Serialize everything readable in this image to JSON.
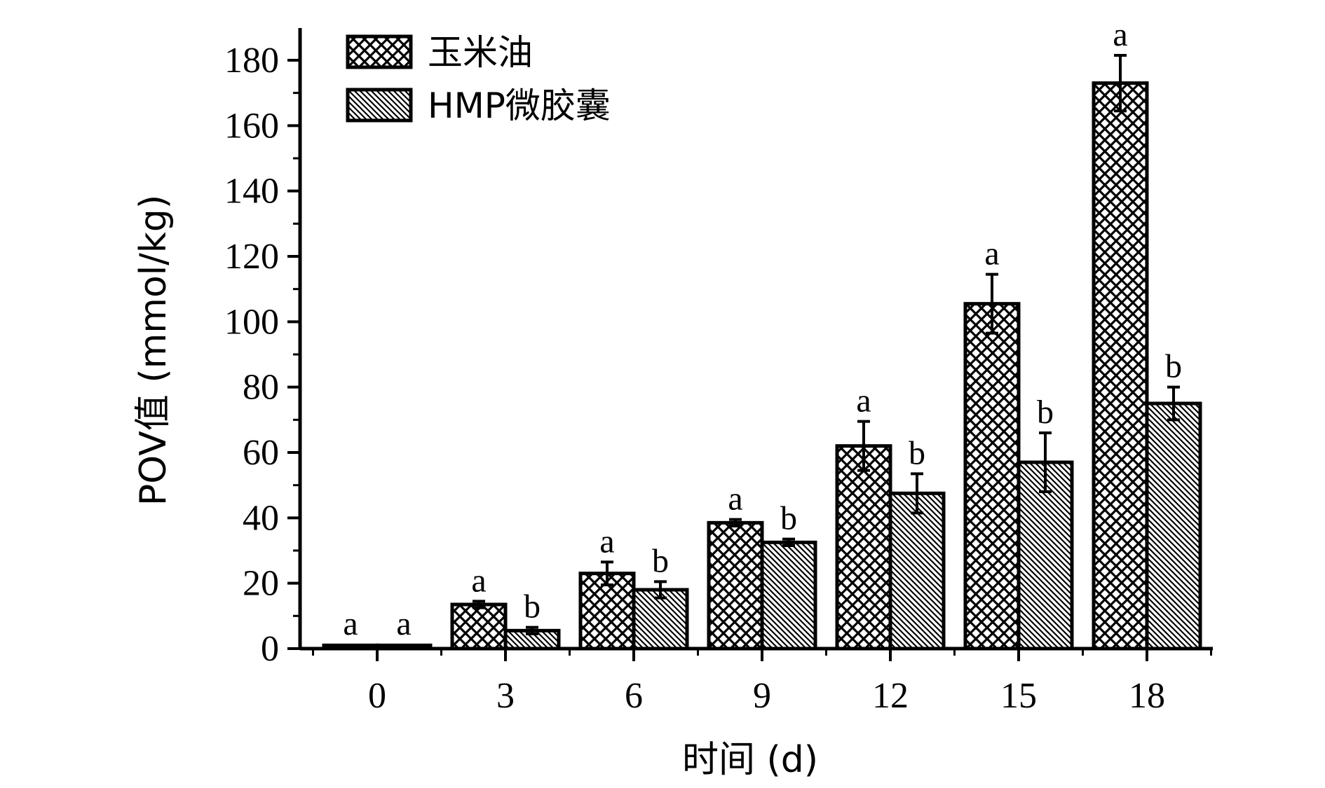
{
  "chart_data": {
    "type": "bar",
    "title": "",
    "xlabel": "时间 (d)",
    "ylabel": "POV值 (mmol/kg)",
    "categories": [
      "0",
      "3",
      "6",
      "9",
      "12",
      "15",
      "18"
    ],
    "ylim": [
      0,
      190
    ],
    "y_ticks": [
      0,
      20,
      40,
      60,
      80,
      100,
      120,
      140,
      160,
      180
    ],
    "grid": false,
    "legend_position": "top-left",
    "series": [
      {
        "name": "玉米油",
        "pattern": "crosshatch",
        "values": [
          1,
          13.5,
          23,
          38.5,
          62,
          105.5,
          173
        ],
        "errors": [
          0.3,
          1.0,
          3.5,
          1.0,
          7.5,
          9.0,
          8.5
        ],
        "letters": [
          "a",
          "a",
          "a",
          "a",
          "a",
          "a",
          "a"
        ]
      },
      {
        "name": "HMP微胶囊",
        "pattern": "diagonal",
        "values": [
          1,
          5.5,
          18,
          32.5,
          47.5,
          57,
          75
        ],
        "errors": [
          0.3,
          1.0,
          2.5,
          1.0,
          6.0,
          9.0,
          5.0
        ],
        "letters": [
          "a",
          "b",
          "b",
          "b",
          "b",
          "b",
          "b"
        ]
      }
    ],
    "colors": {
      "bar_stroke": "#000000",
      "pattern_ink": "#000000",
      "background": "#ffffff"
    }
  }
}
